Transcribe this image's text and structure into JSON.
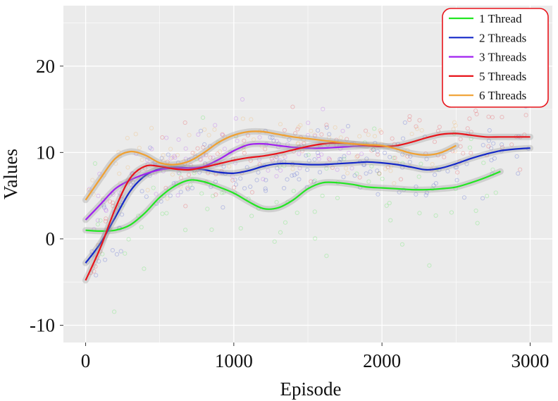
{
  "chart_data": {
    "type": "line",
    "xlabel": "Episode",
    "ylabel": "Values",
    "xlim": [
      -150,
      3150
    ],
    "ylim": [
      -12,
      27
    ],
    "xticks": [
      0,
      1000,
      2000,
      3000
    ],
    "xtick_labels": [
      "0",
      "1000",
      "2000",
      "3000"
    ],
    "yticks": [
      -10,
      0,
      10,
      20
    ],
    "ytick_labels": [
      "-10",
      "0",
      "10",
      "20"
    ],
    "grid": true,
    "background": "#ebebeb",
    "legend_position": "top-right",
    "legend_border_color": "#e8141b",
    "series": [
      {
        "name": "1 Thread",
        "color": "#22e622",
        "x": [
          0,
          100,
          200,
          300,
          400,
          500,
          600,
          700,
          800,
          900,
          1000,
          1100,
          1200,
          1300,
          1400,
          1500,
          1600,
          1700,
          1800,
          1900,
          2000,
          2100,
          2200,
          2300,
          2400,
          2500,
          2600,
          2700,
          2800
        ],
        "values": [
          1.0,
          0.9,
          1.0,
          1.6,
          3.0,
          4.8,
          6.1,
          6.8,
          6.6,
          6.0,
          5.3,
          4.3,
          3.5,
          3.6,
          4.5,
          5.8,
          6.5,
          6.5,
          6.3,
          6.0,
          5.9,
          5.8,
          5.7,
          5.7,
          5.8,
          6.0,
          6.5,
          7.1,
          7.8
        ],
        "scatter": {
          "center": 5.0,
          "spread": 7.0,
          "count": 90,
          "seed": 11
        }
      },
      {
        "name": "2 Threads",
        "color": "#1428c8",
        "x": [
          0,
          100,
          200,
          300,
          400,
          500,
          600,
          700,
          800,
          900,
          1000,
          1100,
          1200,
          1300,
          1400,
          1500,
          1600,
          1700,
          1800,
          1900,
          2000,
          2100,
          2200,
          2300,
          2400,
          2500,
          2600,
          2700,
          2800,
          2900,
          3000
        ],
        "values": [
          -2.8,
          -0.5,
          2.5,
          5.5,
          7.3,
          8.1,
          8.3,
          8.2,
          8.0,
          7.7,
          7.6,
          7.9,
          8.4,
          8.7,
          8.7,
          8.6,
          8.6,
          8.7,
          8.8,
          8.9,
          8.8,
          8.6,
          8.3,
          8.0,
          8.2,
          8.7,
          9.3,
          9.8,
          10.2,
          10.4,
          10.5
        ],
        "scatter": {
          "center": 9.5,
          "spread": 4.5,
          "count": 160,
          "seed": 23
        }
      },
      {
        "name": "3 Threads",
        "color": "#a020f0",
        "x": [
          0,
          100,
          200,
          300,
          400,
          500,
          600,
          700,
          800,
          900,
          1000,
          1100,
          1200,
          1300,
          1400,
          1500,
          1600,
          1700,
          1800,
          1900
        ],
        "values": [
          2.2,
          4.0,
          5.8,
          6.8,
          7.5,
          8.0,
          8.2,
          8.2,
          8.4,
          9.2,
          10.2,
          10.9,
          11.0,
          10.8,
          10.6,
          10.5,
          10.5,
          10.6,
          10.7,
          10.8
        ],
        "scatter": {
          "center": 10.0,
          "spread": 4.0,
          "count": 80,
          "seed": 37
        }
      },
      {
        "name": "5 Threads",
        "color": "#e8141b",
        "x": [
          0,
          100,
          200,
          300,
          400,
          500,
          600,
          700,
          800,
          900,
          1000,
          1100,
          1200,
          1300,
          1400,
          1500,
          1600,
          1700,
          1800,
          1900,
          2000,
          2100,
          2200,
          2300,
          2400,
          2500,
          2600,
          2700,
          2800,
          2900,
          3000
        ],
        "values": [
          -4.8,
          -1.0,
          3.5,
          7.0,
          8.4,
          8.4,
          8.1,
          8.0,
          8.3,
          8.7,
          9.1,
          9.4,
          9.6,
          9.9,
          10.3,
          10.7,
          11.0,
          11.1,
          11.0,
          10.8,
          10.7,
          10.8,
          11.2,
          11.7,
          12.1,
          12.2,
          12.0,
          11.8,
          11.8,
          11.8,
          11.8
        ],
        "scatter": {
          "center": 11.0,
          "spread": 4.0,
          "count": 120,
          "seed": 41
        }
      },
      {
        "name": "6 Threads",
        "color": "#f0a030",
        "x": [
          0,
          100,
          200,
          300,
          400,
          500,
          600,
          700,
          800,
          900,
          1000,
          1100,
          1200,
          1300,
          1400,
          1500,
          1600,
          1700,
          1800,
          1900,
          2000,
          2100,
          2200,
          2300,
          2400,
          2500
        ],
        "values": [
          4.5,
          7.0,
          9.3,
          10.1,
          9.7,
          8.8,
          8.6,
          9.0,
          10.0,
          11.2,
          12.0,
          12.4,
          12.4,
          12.1,
          11.8,
          11.6,
          11.4,
          11.2,
          11.0,
          10.9,
          10.8,
          10.4,
          9.9,
          9.7,
          10.0,
          10.8
        ],
        "scatter": {
          "center": 11.0,
          "spread": 4.0,
          "count": 90,
          "seed": 53
        }
      }
    ]
  }
}
